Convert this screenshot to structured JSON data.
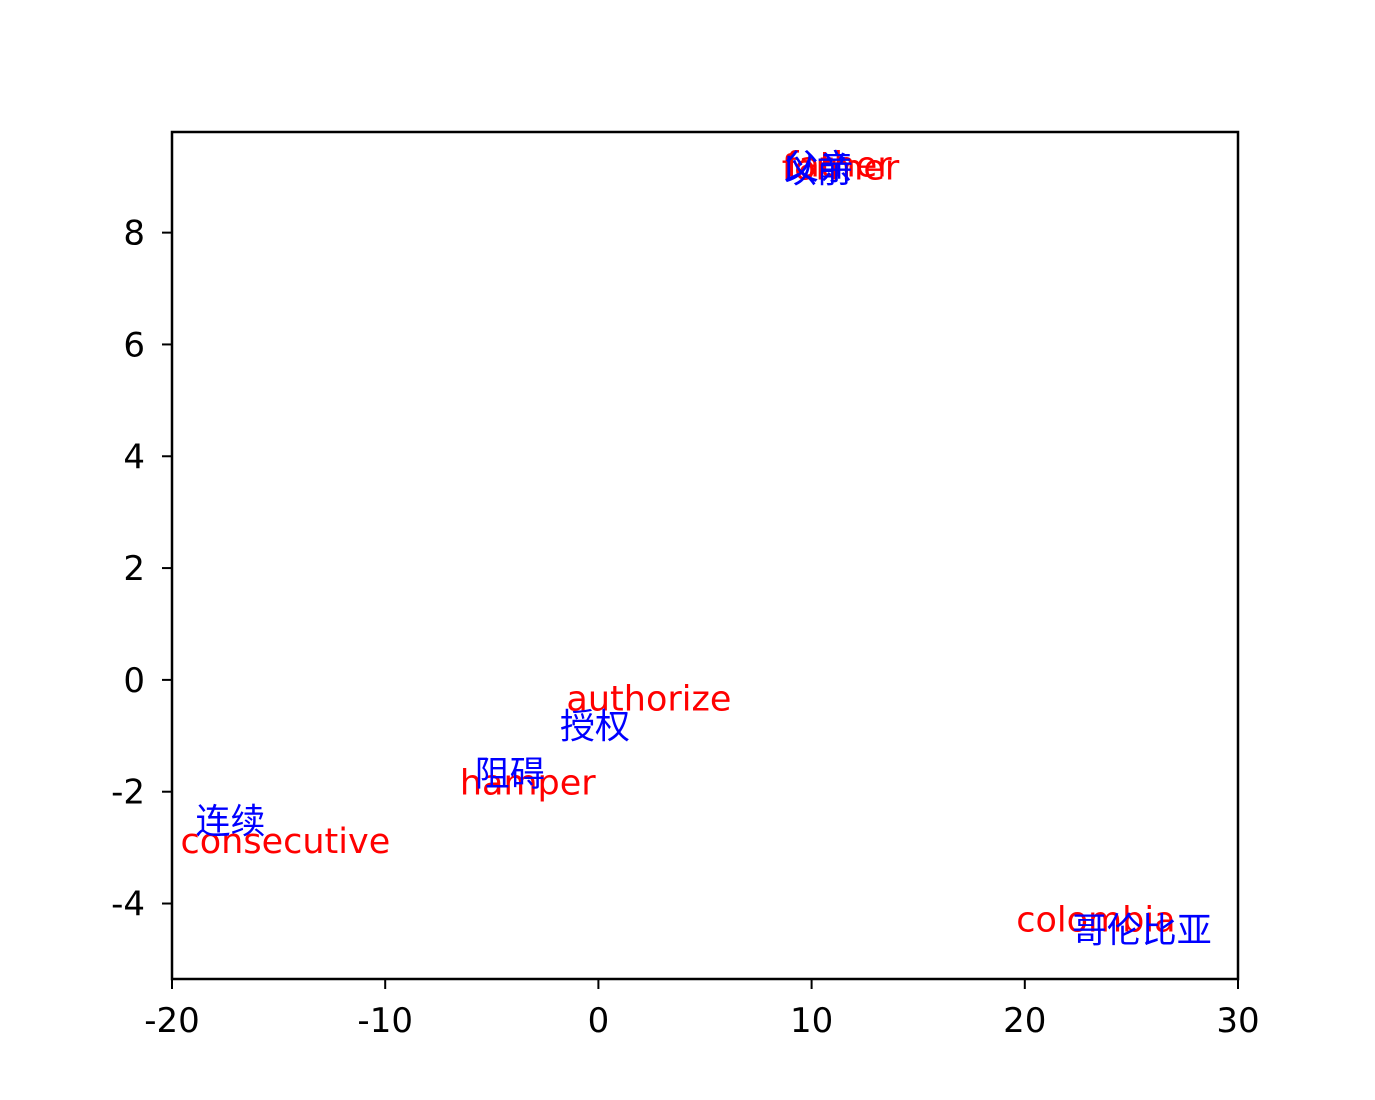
{
  "chart_data": {
    "type": "scatter",
    "title": "",
    "xlabel": "",
    "ylabel": "",
    "xlim": [
      -20,
      30
    ],
    "ylim": [
      -5.35,
      9.8
    ],
    "xticks": [
      -20,
      -10,
      0,
      10,
      20,
      30
    ],
    "xtick_labels": [
      "-20",
      "-10",
      "0",
      "10",
      "20",
      "30"
    ],
    "yticks": [
      -4,
      -2,
      0,
      2,
      4,
      6,
      8
    ],
    "ytick_labels": [
      "-4",
      "-2",
      "0",
      "2",
      "4",
      "6",
      "8"
    ],
    "grid": false,
    "legend": "none",
    "series": [
      {
        "language": "english",
        "color": "#ff0000",
        "points": [
          {
            "label": "father",
            "x": 8.8,
            "y": 9.0
          },
          {
            "label": "former",
            "x": 8.6,
            "y": 8.95
          },
          {
            "label": "authorize",
            "x": -1.5,
            "y": -0.55
          },
          {
            "label": "hamper",
            "x": -6.5,
            "y": -2.05
          },
          {
            "label": "consecutive",
            "x": -19.6,
            "y": -3.1
          },
          {
            "label": "colombia",
            "x": 19.6,
            "y": -4.5
          }
        ]
      },
      {
        "language": "chinese",
        "color": "#0000ff",
        "points": [
          {
            "label": "父亲",
            "x": 8.7,
            "y": 8.95
          },
          {
            "label": "以前",
            "x": 8.6,
            "y": 8.9
          },
          {
            "label": "授权",
            "x": -1.8,
            "y": -1.05
          },
          {
            "label": "阻碍",
            "x": -5.8,
            "y": -1.9
          },
          {
            "label": "连续",
            "x": -18.9,
            "y": -2.75
          },
          {
            "label": "哥伦比亚",
            "x": 22.2,
            "y": -4.7
          }
        ]
      }
    ]
  }
}
